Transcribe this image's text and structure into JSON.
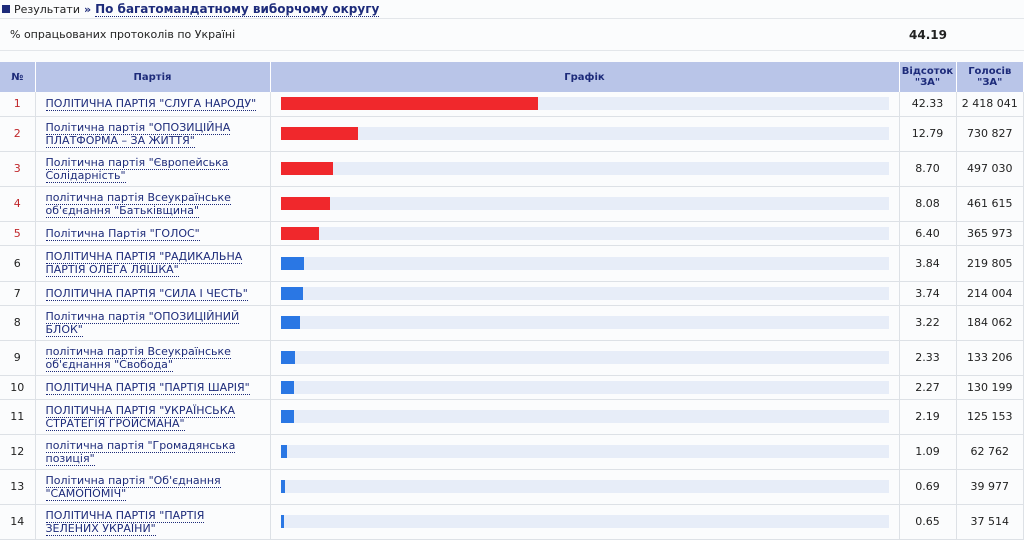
{
  "breadcrumb": {
    "root": "Результати",
    "separator": "»",
    "current": "По багатомандатному виборчому округу"
  },
  "processed": {
    "label": "% опрацьованих протоколів по Україні",
    "value": "44.19"
  },
  "headers": {
    "no": "№",
    "party": "Партія",
    "chart": "Графік",
    "pct": "Відсоток \"ЗА\"",
    "votes": "Голосів \"ЗА\""
  },
  "colors": {
    "top": "#f0282c",
    "other": "#2a77e4"
  },
  "rows": [
    {
      "no": "1",
      "party": "ПОЛІТИЧНА ПАРТІЯ \"СЛУГА НАРОДУ\"",
      "pct": "42.33",
      "votes": "2 418 041"
    },
    {
      "no": "2",
      "party": "Політична партія \"ОПОЗИЦІЙНА ПЛАТФОРМА – ЗА ЖИТТЯ\"",
      "pct": "12.79",
      "votes": "730 827"
    },
    {
      "no": "3",
      "party": "Політична партія \"Європейська Солідарність\"",
      "pct": "8.70",
      "votes": "497 030"
    },
    {
      "no": "4",
      "party": "політична партія Всеукраїнське об'єднання \"Батьківщина\"",
      "pct": "8.08",
      "votes": "461 615"
    },
    {
      "no": "5",
      "party": "Політична Партія \"ГОЛОС\"",
      "pct": "6.40",
      "votes": "365 973"
    },
    {
      "no": "6",
      "party": "ПОЛІТИЧНА ПАРТІЯ \"РАДИКАЛЬНА ПАРТІЯ ОЛЕГА ЛЯШКА\"",
      "pct": "3.84",
      "votes": "219 805"
    },
    {
      "no": "7",
      "party": "ПОЛІТИЧНА ПАРТІЯ \"СИЛА І ЧЕСТЬ\"",
      "pct": "3.74",
      "votes": "214 004"
    },
    {
      "no": "8",
      "party": "Політична партія \"ОПОЗИЦІЙНИЙ БЛОК\"",
      "pct": "3.22",
      "votes": "184 062"
    },
    {
      "no": "9",
      "party": "політична партія Всеукраїнське об'єднання \"Свобода\"",
      "pct": "2.33",
      "votes": "133 206"
    },
    {
      "no": "10",
      "party": "ПОЛІТИЧНА ПАРТІЯ \"ПАРТІЯ ШАРІЯ\"",
      "pct": "2.27",
      "votes": "130 199"
    },
    {
      "no": "11",
      "party": "ПОЛІТИЧНА ПАРТІЯ \"УКРАЇНСЬКА СТРАТЕГІЯ ГРОЙСМАНА\"",
      "pct": "2.19",
      "votes": "125 153"
    },
    {
      "no": "12",
      "party": "політична партія \"Громадянська позиція\"",
      "pct": "1.09",
      "votes": "62 762"
    },
    {
      "no": "13",
      "party": "Політична партія \"Об'єднання \"САМОПОМІЧ\"",
      "pct": "0.69",
      "votes": "39 977"
    },
    {
      "no": "14",
      "party": "ПОЛІТИЧНА ПАРТІЯ \"ПАРТІЯ ЗЕЛЕНИХ УКРАЇНИ\"",
      "pct": "0.65",
      "votes": "37 514"
    }
  ]
}
